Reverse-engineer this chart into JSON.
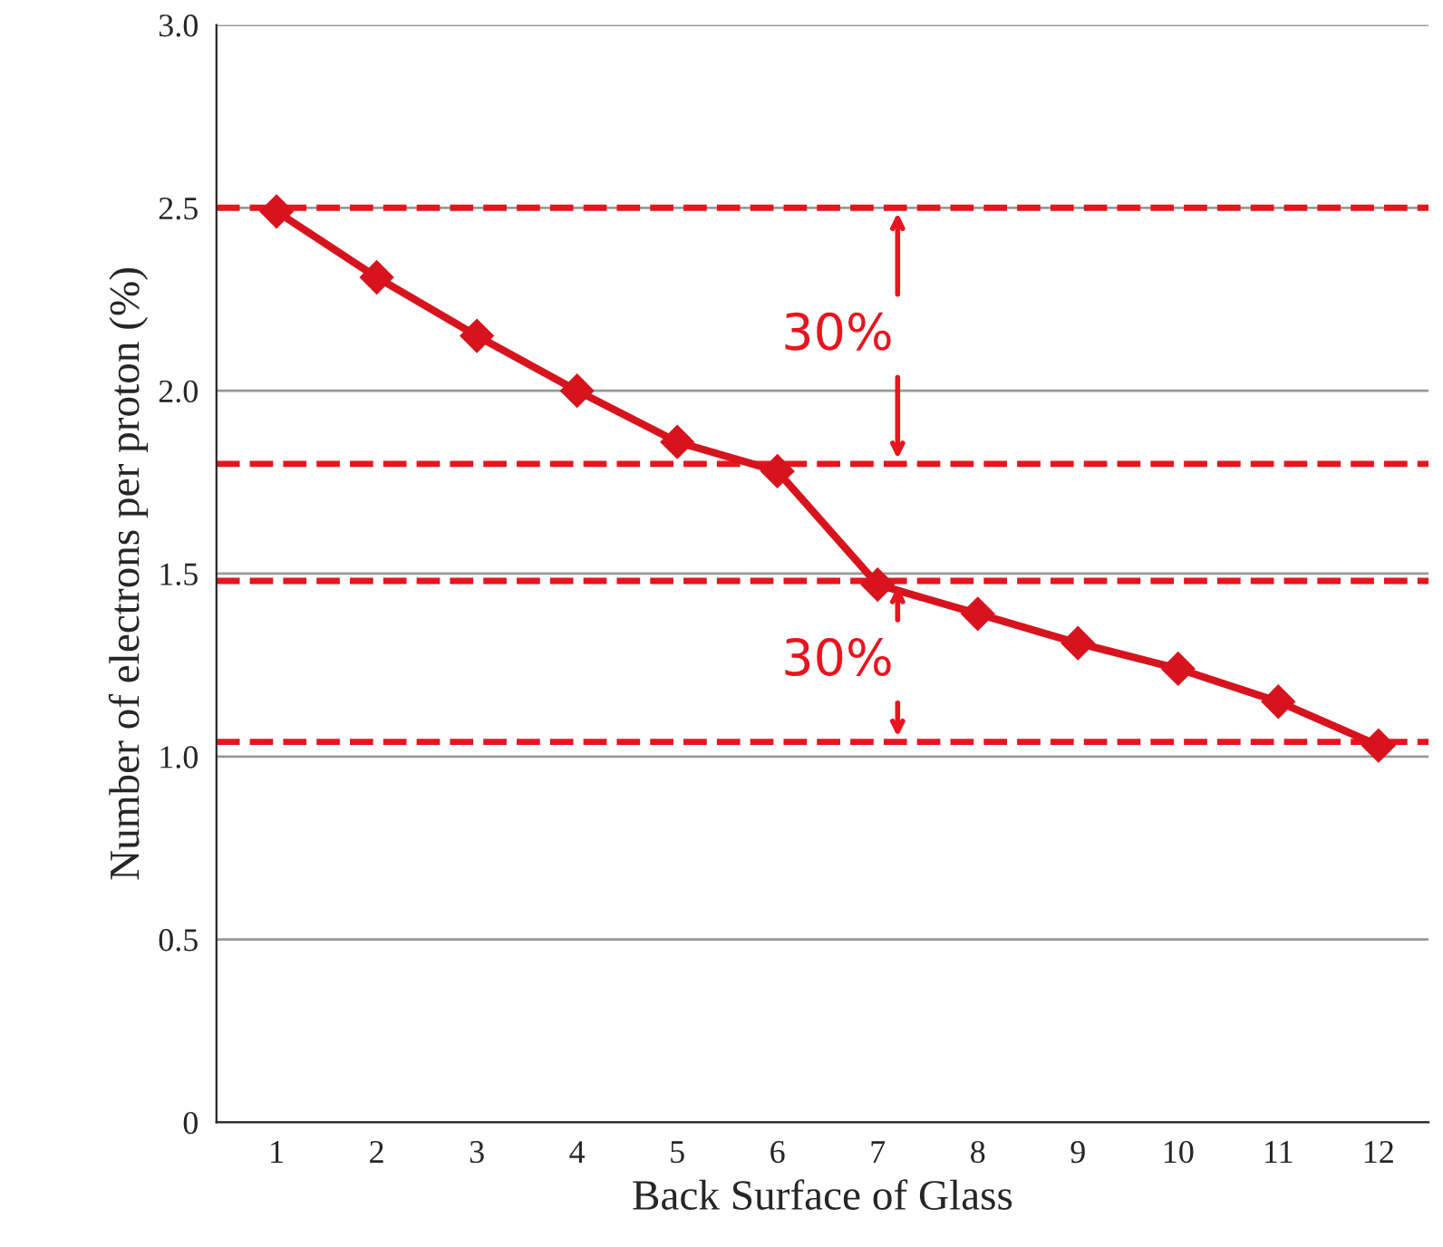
{
  "chart_data": {
    "type": "line",
    "xlabel": "Back Surface of Glass",
    "ylabel": "Number of electrons per proton (%)",
    "categories": [
      "1",
      "2",
      "3",
      "4",
      "5",
      "6",
      "7",
      "8",
      "9",
      "10",
      "11",
      "12"
    ],
    "series": [
      {
        "color": "#d7141e",
        "values": [
          2.49,
          2.31,
          2.15,
          2.0,
          1.86,
          1.78,
          1.47,
          1.39,
          1.31,
          1.24,
          1.15,
          1.03
        ]
      }
    ],
    "ylim": [
      0,
      3.0
    ],
    "yticks": [
      0,
      {
        "value": 0.5,
        "label": "0.5"
      },
      {
        "value": 1.0,
        "label": "1.0"
      },
      {
        "value": 1.5,
        "label": "1.5"
      },
      {
        "value": 2.0,
        "label": "2.0"
      },
      {
        "value": 2.5,
        "label": "2.5"
      },
      {
        "value": 3.0,
        "label": "3.0"
      }
    ],
    "grid": "y",
    "marker": "diamond",
    "line_style": "solid",
    "ref_lines": [
      {
        "axis": "y",
        "value": 2.5,
        "color": "#e8141e",
        "line_style": "dashed"
      },
      {
        "axis": "y",
        "value": 1.8,
        "color": "#e8141e",
        "line_style": "dashed"
      },
      {
        "axis": "y",
        "value": 1.48,
        "color": "#e8141e",
        "line_style": "dashed"
      },
      {
        "axis": "y",
        "value": 1.04,
        "color": "#e8141e",
        "line_style": "dashed"
      }
    ],
    "annotations": [
      "30%",
      "30%"
    ]
  }
}
